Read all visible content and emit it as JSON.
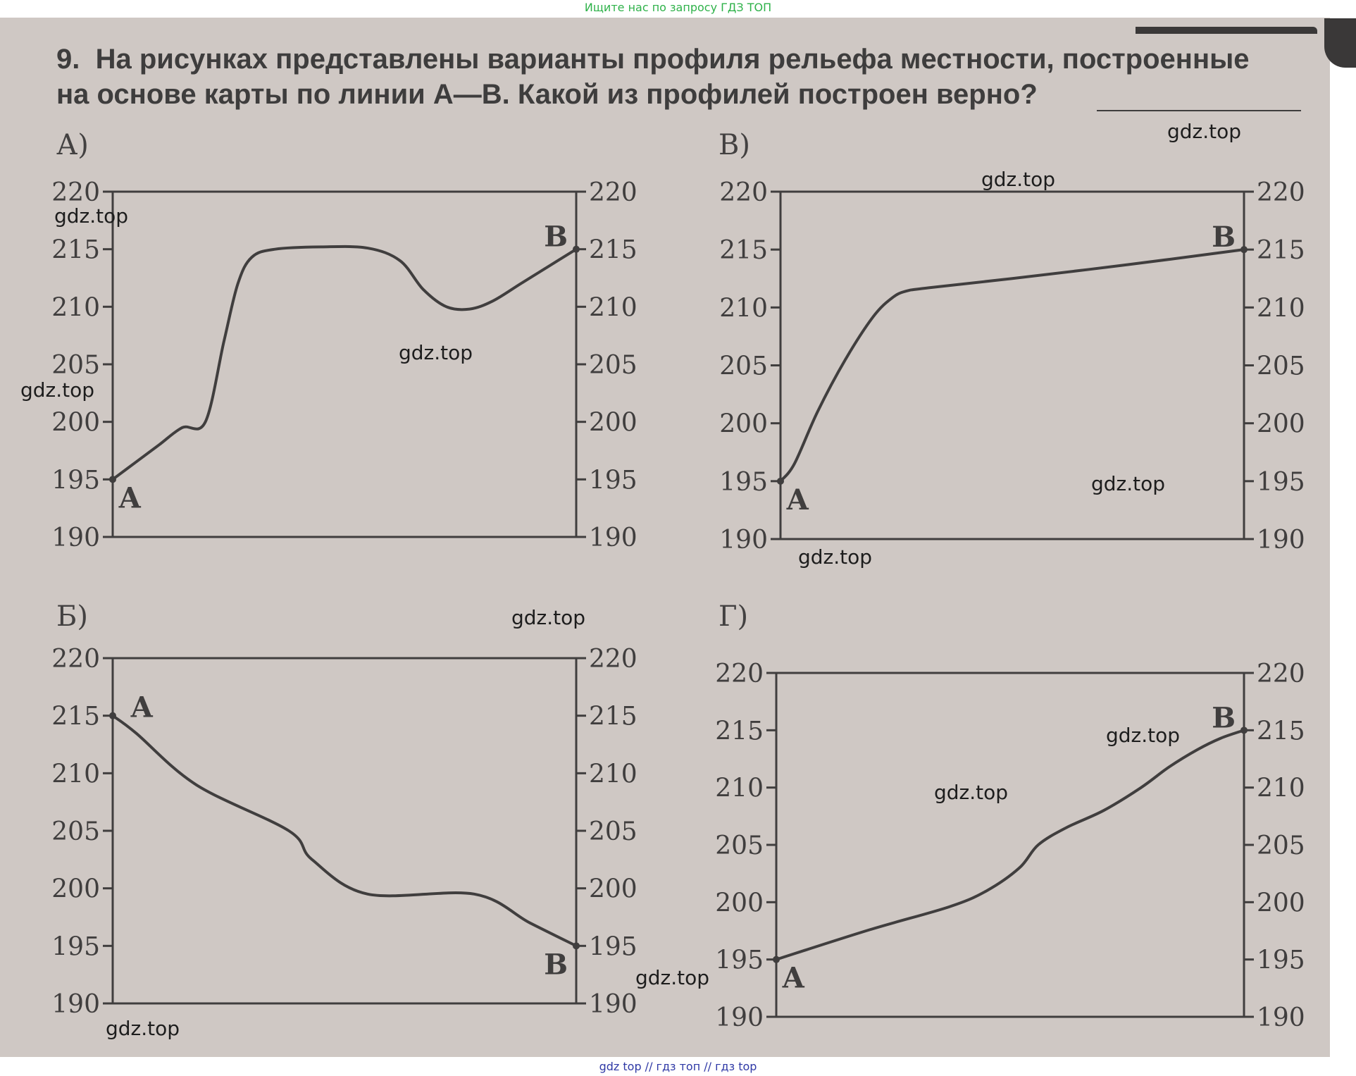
{
  "banner_top": "Ищите нас по запросу ГДЗ ТОП",
  "banner_bottom": "gdz top  //  гдз топ  //  гдз top",
  "question": {
    "number": "9.",
    "line1": "На рисунках представлены варианты профиля рельефа местности, построенные",
    "line2": "на основе карты по линии А—В. Какой из профилей построен верно?"
  },
  "watermark": "gdz.top",
  "colors": {
    "paper": "#cfc8c4",
    "ink": "#403e3e",
    "top_banner": "#2fb24a",
    "bottom_banner": "#2f39a6"
  },
  "chart_data": [
    {
      "type": "line",
      "label": "А)",
      "yticks": [
        220,
        215,
        210,
        205,
        200,
        195,
        190
      ],
      "ylim": [
        190,
        220
      ],
      "xlim": [
        0,
        100
      ],
      "grid": false,
      "start_label": "А",
      "end_label": "В",
      "x": [
        0,
        5,
        10,
        15,
        20,
        24,
        27,
        30,
        35,
        45,
        55,
        62,
        67,
        72,
        77,
        82,
        88,
        94,
        100
      ],
      "values": [
        195,
        196.5,
        198,
        199.5,
        200,
        207,
        212,
        214.3,
        215,
        215.2,
        215.1,
        214,
        211.5,
        210,
        209.8,
        210.5,
        212,
        213.5,
        215
      ]
    },
    {
      "type": "line",
      "label": "Б)",
      "yticks": [
        220,
        215,
        210,
        205,
        200,
        195,
        190
      ],
      "ylim": [
        190,
        220
      ],
      "xlim": [
        0,
        100
      ],
      "grid": false,
      "start_label": "А",
      "end_label": "В",
      "x": [
        0,
        5,
        18,
        38,
        43,
        55,
        78,
        90,
        100
      ],
      "values": [
        215,
        213.5,
        209,
        205,
        202.5,
        199.5,
        199.5,
        197,
        195
      ]
    },
    {
      "type": "line",
      "label": "В)",
      "yticks": [
        220,
        215,
        210,
        205,
        200,
        195,
        190
      ],
      "ylim": [
        190,
        220
      ],
      "xlim": [
        0,
        100
      ],
      "grid": false,
      "start_label": "А",
      "end_label": "В",
      "x": [
        0,
        3,
        8,
        14,
        20,
        24,
        27,
        32,
        50,
        75,
        100
      ],
      "values": [
        195,
        196.5,
        201,
        205.5,
        209.2,
        210.8,
        211.4,
        211.7,
        212.5,
        213.7,
        215
      ]
    },
    {
      "type": "line",
      "label": "Г)",
      "yticks": [
        220,
        215,
        210,
        205,
        200,
        195,
        190
      ],
      "ylim": [
        190,
        220
      ],
      "xlim": [
        0,
        100
      ],
      "grid": false,
      "start_label": "А",
      "end_label": "В",
      "x": [
        0,
        20,
        37,
        45,
        52,
        56,
        62,
        70,
        78,
        84,
        90,
        95,
        100
      ],
      "values": [
        195,
        197.6,
        199.6,
        201,
        203,
        205,
        206.5,
        208,
        210,
        211.8,
        213.3,
        214.3,
        215
      ]
    }
  ]
}
